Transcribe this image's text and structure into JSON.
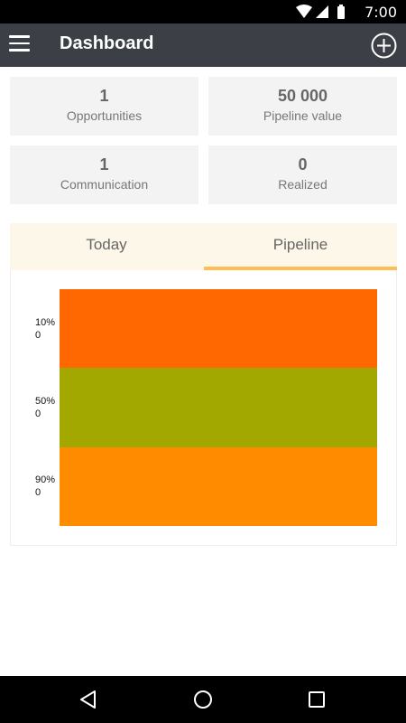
{
  "status_bar": {
    "time": "7:00",
    "icons": [
      "wifi-icon",
      "signal-icon",
      "battery-icon"
    ]
  },
  "app_bar": {
    "title": "Dashboard"
  },
  "cards": [
    {
      "value": "1",
      "label": "Opportunities"
    },
    {
      "value": "50 000",
      "label": "Pipeline value"
    },
    {
      "value": "1",
      "label": "Communication"
    },
    {
      "value": "0",
      "label": "Realized"
    }
  ],
  "tabs": [
    {
      "label": "Today",
      "active": false
    },
    {
      "label": "Pipeline",
      "active": true
    }
  ],
  "chart_data": {
    "type": "bar",
    "categories": [
      "10%",
      "50%",
      "90%"
    ],
    "values": [
      0,
      0,
      0
    ],
    "value_labels": [
      "0",
      "0",
      "0"
    ],
    "colors": [
      "#ff6700",
      "#a3a800",
      "#ff8c00"
    ]
  }
}
